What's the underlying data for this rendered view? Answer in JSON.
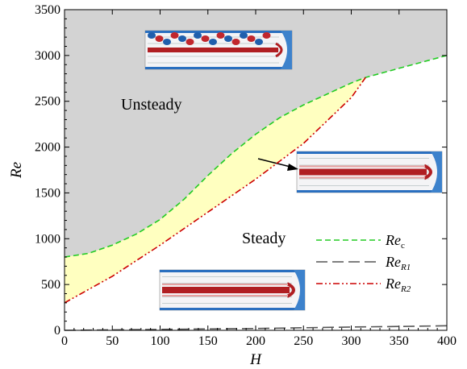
{
  "chart_data": {
    "type": "line",
    "xlabel": "H",
    "ylabel": "Re",
    "xlim": [
      0,
      400
    ],
    "ylim": [
      0,
      3500
    ],
    "xticks": [
      0,
      50,
      100,
      150,
      200,
      250,
      300,
      350,
      400
    ],
    "yticks": [
      0,
      500,
      1000,
      1500,
      2000,
      2500,
      3000,
      3500
    ],
    "grid": false,
    "legend_position": "right-middle",
    "regions": [
      {
        "label": "Unsteady",
        "fill": "#d3d3d3"
      },
      {
        "label": "Steady",
        "fill": "#ffffff"
      },
      {
        "label": "",
        "fill": "#ffffc0"
      }
    ],
    "series": [
      {
        "name": "Re",
        "subscript": "c",
        "color": "#22cc22",
        "style": "dashed",
        "x": [
          0,
          25,
          50,
          75,
          100,
          125,
          150,
          175,
          200,
          225,
          250,
          275,
          300,
          315,
          350,
          400
        ],
        "y": [
          800,
          840,
          930,
          1050,
          1210,
          1430,
          1690,
          1930,
          2140,
          2320,
          2460,
          2580,
          2700,
          2760,
          2860,
          3000
        ]
      },
      {
        "name": "Re",
        "subscript": "R1",
        "color": "#555555",
        "style": "long-dash",
        "x": [
          0,
          50,
          100,
          150,
          200,
          250,
          300,
          350,
          400
        ],
        "y": [
          0,
          5,
          10,
          15,
          20,
          28,
          36,
          42,
          50
        ]
      },
      {
        "name": "Re",
        "subscript": "R2",
        "color": "#cc0000",
        "style": "dash-dot-dot",
        "x": [
          0,
          50,
          100,
          150,
          200,
          250,
          300,
          315
        ],
        "y": [
          300,
          590,
          930,
          1290,
          1650,
          2040,
          2540,
          2760
        ]
      }
    ],
    "insets": [
      {
        "description": "unsteady flow field snapshot",
        "near": "top-center"
      },
      {
        "description": "steady flow field snapshot pointed to boundary",
        "near": "right-middle"
      },
      {
        "description": "steady flow field snapshot",
        "near": "bottom-center"
      }
    ]
  }
}
